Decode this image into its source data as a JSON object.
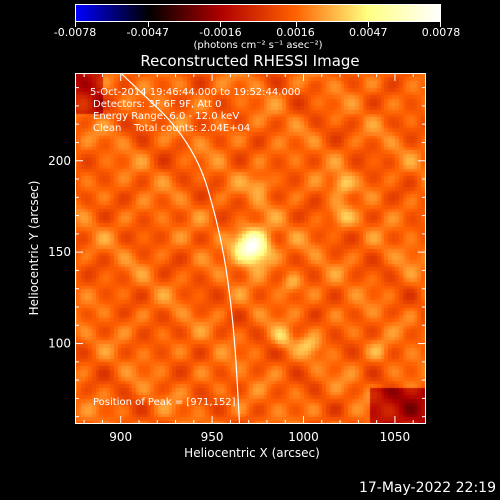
{
  "colorbar": {
    "tick_labels": [
      "-0.0078",
      "-0.0047",
      "-0.0016",
      "0.0016",
      "0.0047",
      "0.0078"
    ],
    "tick_values": [
      -0.0078,
      -0.0047,
      -0.0016,
      0.0016,
      0.0047,
      0.0078
    ],
    "units": "(photons cm⁻² s⁻¹ asec⁻²)",
    "colors": [
      "#0000ff",
      "#000000",
      "#b00000",
      "#ff6000",
      "#ffff80",
      "#ffffff"
    ]
  },
  "title": "Reconstructed RHESSI Image",
  "info": {
    "time_range": "5-Oct-2014 19:46:44.000 to 19:52:44.000",
    "detectors": "Detectors: 3F 6F 9F, Att 0",
    "energy": "Energy Range: 6.0 - 12.0 keV",
    "clean": "Clean    Total counts: 2.04E+04",
    "peak": "Position of Peak = [971,152]"
  },
  "timestamp": "17-May-2022 22:19",
  "chart_data": {
    "type": "heatmap",
    "title": "Reconstructed RHESSI Image",
    "xlabel": "Heliocentric X (arcsec)",
    "ylabel": "Heliocentric Y (arcsec)",
    "xlim": [
      875,
      1067
    ],
    "ylim": [
      56,
      248
    ],
    "x_ticks": [
      900,
      950,
      1000,
      1050
    ],
    "y_ticks": [
      100,
      150,
      200
    ],
    "x_tick_labels": [
      "900",
      "950",
      "1000",
      "1050"
    ],
    "y_tick_labels": [
      "100",
      "150",
      "200"
    ],
    "value_range": [
      -0.0078,
      0.0078
    ],
    "peak": [
      971,
      152
    ],
    "sources": [
      {
        "x": 971,
        "y": 152,
        "value": 0.0078
      },
      {
        "x": 1020,
        "y": 187,
        "value": 0.0035
      },
      {
        "x": 1020,
        "y": 168,
        "value": 0.003
      },
      {
        "x": 975,
        "y": 186,
        "value": 0.003
      },
      {
        "x": 992,
        "y": 132,
        "value": 0.0028
      },
      {
        "x": 987,
        "y": 102,
        "value": 0.0032
      },
      {
        "x": 1002,
        "y": 98,
        "value": 0.0026
      },
      {
        "x": 1040,
        "y": 95,
        "value": 0.0022
      },
      {
        "x": 1055,
        "y": 148,
        "value": 0.0018
      }
    ],
    "limb_points": [
      [
        900,
        248
      ],
      [
        940,
        210
      ],
      [
        955,
        160
      ],
      [
        962,
        110
      ],
      [
        965,
        56
      ]
    ]
  }
}
